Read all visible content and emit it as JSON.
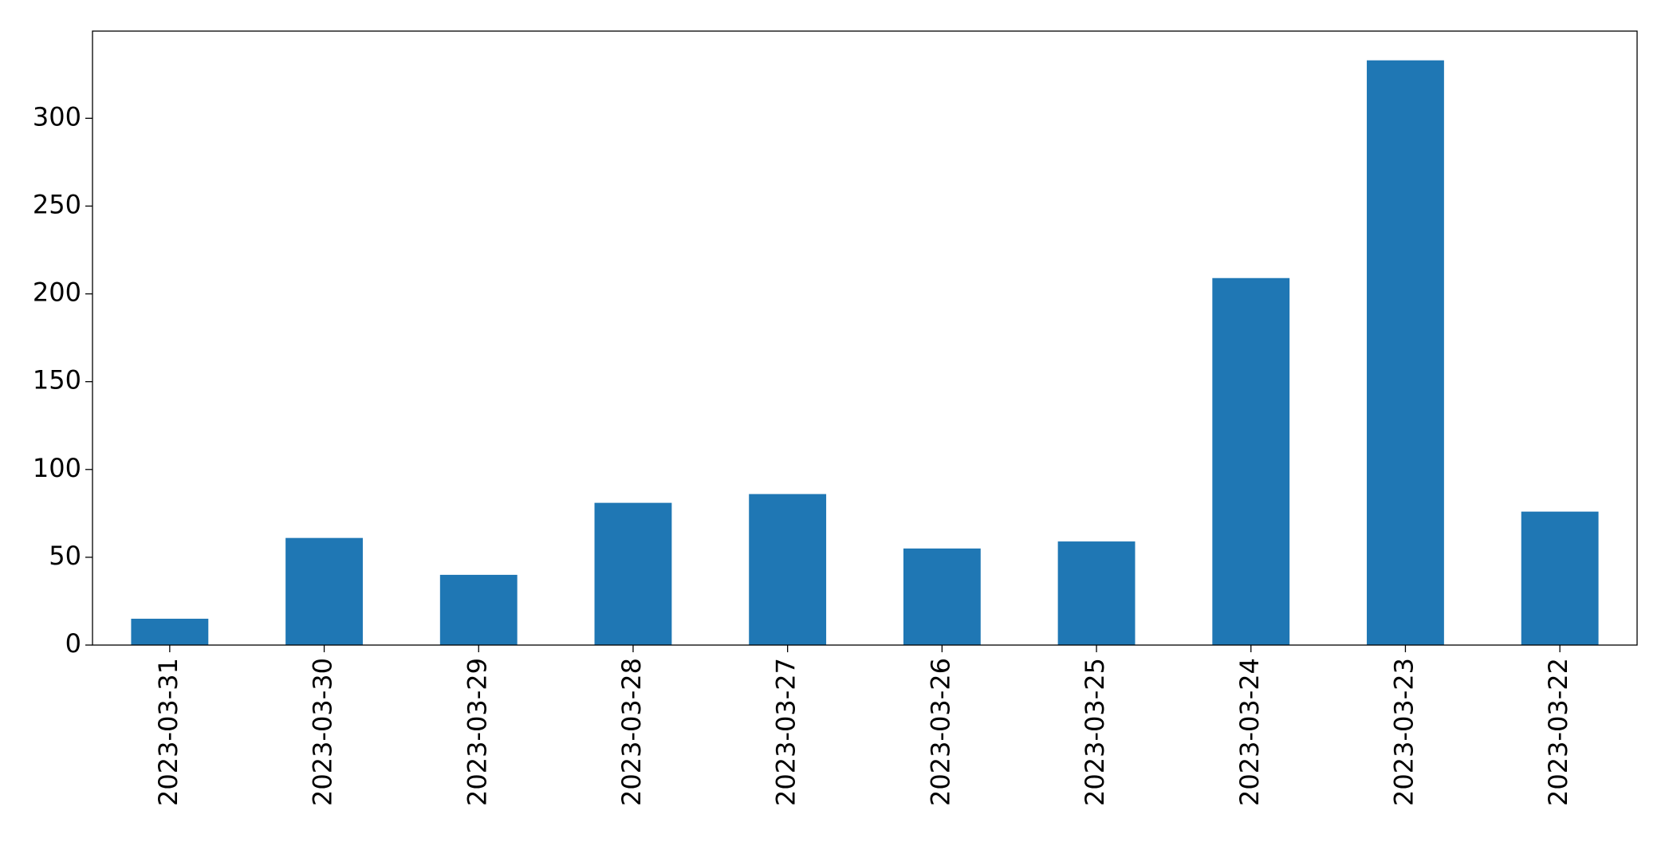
{
  "chart_data": {
    "type": "bar",
    "categories": [
      "2023-03-31",
      "2023-03-30",
      "2023-03-29",
      "2023-03-28",
      "2023-03-27",
      "2023-03-26",
      "2023-03-25",
      "2023-03-24",
      "2023-03-23",
      "2023-03-22"
    ],
    "values": [
      15,
      61,
      40,
      81,
      86,
      55,
      59,
      209,
      333,
      76
    ],
    "color": "#1f77b4",
    "ylim": [
      0,
      349.65
    ],
    "yticks": [
      0,
      50,
      100,
      150,
      200,
      250,
      300
    ],
    "grid": false
  }
}
